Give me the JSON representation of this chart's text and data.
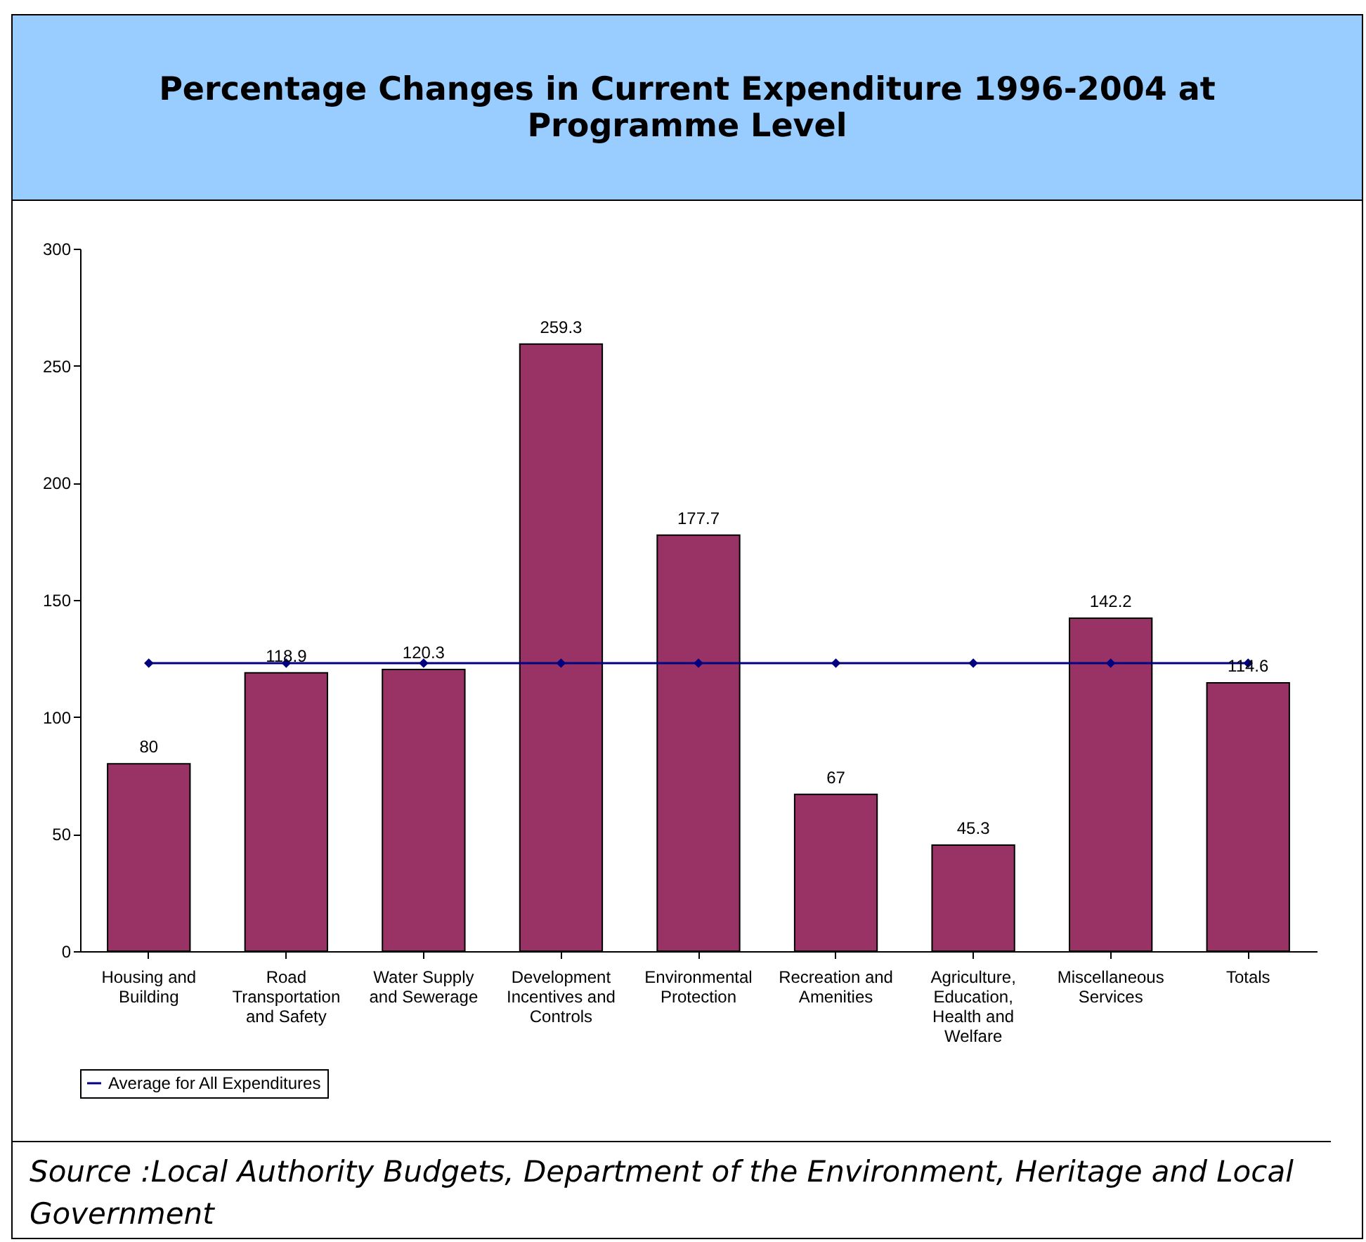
{
  "chart_data": {
    "type": "bar",
    "title": "Percentage Changes in Current Expenditure 1996-2004 at Programme Level",
    "categories": [
      "Housing and Building",
      "Road Transportation and Safety",
      "Water Supply and Sewerage",
      "Development Incentives and Controls",
      "Environmental Protection",
      "Recreation and Amenities",
      "Agriculture, Education, Health and Welfare",
      "Miscellaneous Services",
      "Totals"
    ],
    "series": [
      {
        "color": "#993366",
        "values": [
          80,
          118.9,
          120.3,
          259.3,
          177.7,
          67,
          45.3,
          142.2,
          114.6
        ],
        "value_labels": [
          "80",
          "118.9",
          "120.3",
          "259.3",
          "177.7",
          "67",
          "45.3",
          "142.2",
          "114.6"
        ]
      },
      {
        "name": "Average for All Expenditures",
        "type": "line",
        "color": "#000080",
        "values": [
          123,
          123,
          123,
          123,
          123,
          123,
          123,
          123,
          123
        ]
      }
    ],
    "ylim": [
      0,
      300
    ],
    "yticks": [
      0,
      50,
      100,
      150,
      200,
      250,
      300
    ],
    "grid": false,
    "legend": "bottom",
    "marker": "diamond",
    "annotations": [
      "Source :Local Authority Budgets,  Department of the Environment, Heritage and Local Government"
    ]
  }
}
